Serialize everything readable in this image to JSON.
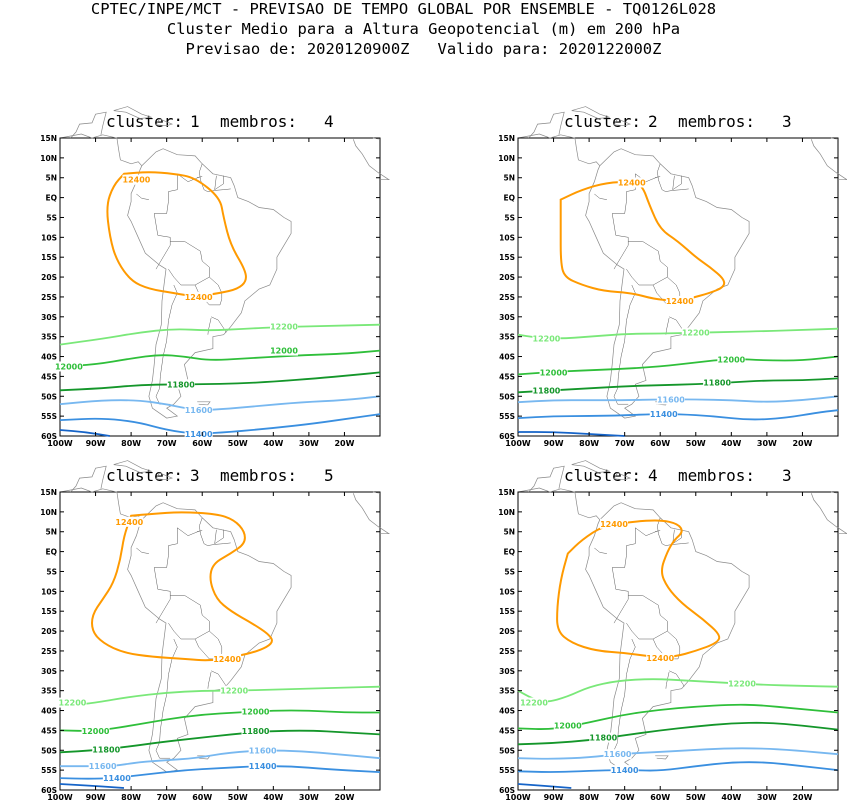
{
  "header": {
    "line1": "CPTEC/INPE/MCT - PREVISAO DE TEMPO GLOBAL POR ENSEMBLE - TQ0126L028",
    "line2": "Cluster Medio para a Altura Geopotencial (m) em 200 hPa",
    "line3": "Previsao de: 2020120900Z   Valido para: 2020122000Z"
  },
  "axes": {
    "lat_labels": [
      "15N",
      "10N",
      "5N",
      "EQ",
      "5S",
      "10S",
      "15S",
      "20S",
      "25S",
      "30S",
      "35S",
      "40S",
      "45S",
      "50S",
      "55S",
      "60S"
    ],
    "lon_labels": [
      "100W",
      "90W",
      "80W",
      "70W",
      "60W",
      "50W",
      "40W",
      "30W",
      "20W"
    ],
    "lat_range": [
      -60,
      15
    ],
    "lon_range": [
      -100,
      -10
    ]
  },
  "contour_colors": {
    "12400": "#ff9a00",
    "12200": "#7ae879",
    "12000": "#2fbf3a",
    "11800": "#14962a",
    "11600": "#78b8f0",
    "11400": "#3a8fe0",
    "11200": "#1664c8",
    "coast": "#8a8a8a"
  },
  "panels": [
    {
      "cluster_label": "cluster:",
      "cluster_value": "1",
      "membros_label": "membros:",
      "membros_value": "4",
      "labels": {
        "12400a": "12400",
        "12400b": "12400",
        "12200": "12200",
        "12000": "12000",
        "11800": "11800",
        "11600": "11600",
        "11400": "11400"
      }
    },
    {
      "cluster_label": "cluster:",
      "cluster_value": "2",
      "membros_label": "membros:",
      "membros_value": "3",
      "labels": {
        "12400a": "12400",
        "12400b": "12400",
        "12200": "12200",
        "12200b": "12200",
        "12000": "12000",
        "12000b": "12000",
        "11800": "11800",
        "11800b": "11800",
        "11600": "11600",
        "11400": "11400"
      }
    },
    {
      "cluster_label": "cluster:",
      "cluster_value": "3",
      "membros_label": "membros:",
      "membros_value": "5",
      "labels": {
        "12400a": "12400",
        "12400b": "12400",
        "12200": "12200",
        "12200b": "12200",
        "12000": "12000",
        "12000b": "12000",
        "11800": "11800",
        "11800b": "11800",
        "11600": "11600",
        "11600b": "11600",
        "11400": "11400",
        "11400b": "11400"
      }
    },
    {
      "cluster_label": "cluster:",
      "cluster_value": "4",
      "membros_label": "membros:",
      "membros_value": "3",
      "labels": {
        "12400a": "12400",
        "12400b": "12400",
        "12200": "12200",
        "12200b": "12200",
        "12000": "12000",
        "11800": "11800",
        "11600": "11600",
        "11400": "11400"
      }
    }
  ]
}
